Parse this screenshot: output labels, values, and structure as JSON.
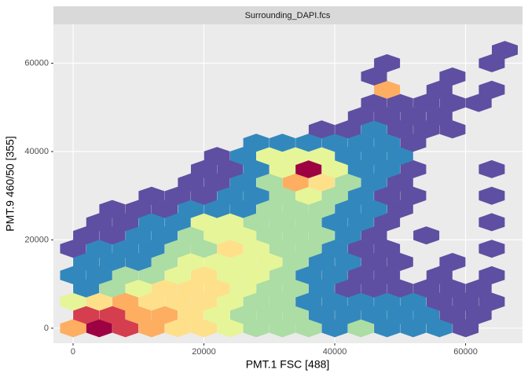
{
  "chart_data": {
    "type": "hexbin",
    "strip_title": "Surrounding_DAPI.fcs",
    "x_label": "PMT.1 FSC [488]",
    "y_label": "PMT.9 460/50 [355]",
    "xlim": [
      -3000,
      68700
    ],
    "ylim": [
      -3400,
      68800
    ],
    "xticks": [
      0,
      20000,
      40000,
      60000
    ],
    "yticks": [
      0,
      20000,
      40000,
      60000
    ],
    "grid": true,
    "colors": [
      "#5e4fa2",
      "#3288bd",
      "#66c2a5",
      "#abdda4",
      "#e6f598",
      "#fee08b",
      "#fdae61",
      "#f46d43",
      "#d53e4f",
      "#9e0142"
    ],
    "rows": [
      {
        "y": 0,
        "x": [
          0,
          4000,
          8000,
          12000,
          16000,
          20000,
          24000,
          28000,
          32000,
          36000,
          40000,
          44000,
          48000,
          52000,
          56000,
          60000
        ],
        "values": [
          6,
          8,
          7,
          6,
          5,
          5,
          4,
          3,
          3,
          3,
          2,
          3,
          2,
          2,
          2,
          1
        ]
      },
      {
        "y": 3000,
        "x": [
          2000,
          6000,
          10000,
          14000,
          18000,
          22000,
          26000,
          30000,
          34000,
          38000,
          42000,
          46000,
          50000,
          54000,
          58000,
          62000
        ],
        "values": [
          7,
          7,
          6,
          6,
          5,
          4,
          3,
          3,
          3,
          2,
          2,
          2,
          2,
          2,
          1,
          1
        ]
      },
      {
        "y": 6000,
        "x": [
          0,
          4000,
          8000,
          12000,
          16000,
          20000,
          24000,
          28000,
          32000,
          36000,
          40000,
          44000,
          48000,
          52000,
          56000,
          60000,
          64000
        ],
        "values": [
          4,
          5,
          6,
          5,
          5,
          5,
          4,
          3,
          3,
          2,
          2,
          2,
          2,
          2,
          1,
          1,
          1
        ]
      },
      {
        "y": 9000,
        "x": [
          2000,
          6000,
          10000,
          14000,
          18000,
          22000,
          26000,
          30000,
          34000,
          38000,
          42000,
          46000,
          50000,
          54000,
          58000,
          62000
        ],
        "values": [
          2,
          3,
          4,
          5,
          5,
          5,
          4,
          3,
          3,
          2,
          1,
          1,
          1,
          1,
          1,
          1
        ]
      },
      {
        "y": 12000,
        "x": [
          0,
          4000,
          8000,
          12000,
          16000,
          20000,
          24000,
          28000,
          32000,
          36000,
          40000,
          44000,
          48000,
          56000,
          64000
        ],
        "values": [
          2,
          2,
          3,
          3,
          4,
          5,
          4,
          4,
          3,
          2,
          2,
          1,
          1,
          1,
          1
        ]
      },
      {
        "y": 15000,
        "x": [
          2000,
          6000,
          10000,
          14000,
          18000,
          22000,
          26000,
          30000,
          34000,
          38000,
          42000,
          46000,
          50000,
          58000
        ],
        "values": [
          2,
          2,
          2,
          3,
          4,
          4,
          4,
          4,
          3,
          2,
          2,
          1,
          1,
          1
        ]
      },
      {
        "y": 18000,
        "x": [
          0,
          4000,
          8000,
          12000,
          16000,
          20000,
          24000,
          28000,
          32000,
          36000,
          40000,
          44000,
          48000,
          64000
        ],
        "values": [
          1,
          2,
          2,
          2,
          3,
          3,
          5,
          4,
          3,
          3,
          2,
          1,
          1,
          1
        ]
      },
      {
        "y": 21000,
        "x": [
          2000,
          6000,
          10000,
          14000,
          18000,
          22000,
          26000,
          30000,
          34000,
          38000,
          42000,
          46000,
          54000
        ],
        "values": [
          1,
          1,
          2,
          2,
          3,
          4,
          4,
          3,
          3,
          3,
          2,
          1,
          1
        ]
      },
      {
        "y": 24000,
        "x": [
          4000,
          8000,
          12000,
          16000,
          20000,
          24000,
          28000,
          32000,
          36000,
          40000,
          44000,
          48000,
          64000
        ],
        "values": [
          1,
          1,
          2,
          2,
          4,
          4,
          3,
          3,
          3,
          2,
          2,
          1,
          1
        ]
      },
      {
        "y": 27000,
        "x": [
          6000,
          10000,
          14000,
          18000,
          22000,
          26000,
          30000,
          34000,
          38000,
          42000,
          46000,
          50000
        ],
        "values": [
          1,
          1,
          1,
          2,
          2,
          2,
          3,
          3,
          3,
          2,
          2,
          1
        ]
      },
      {
        "y": 30000,
        "x": [
          12000,
          16000,
          20000,
          24000,
          28000,
          32000,
          36000,
          40000,
          44000,
          48000,
          52000,
          64000
        ],
        "values": [
          1,
          1,
          1,
          2,
          2,
          3,
          4,
          3,
          2,
          1,
          1,
          1
        ]
      },
      {
        "y": 33000,
        "x": [
          18000,
          22000,
          26000,
          30000,
          34000,
          38000,
          42000,
          46000,
          50000
        ],
        "values": [
          1,
          1,
          2,
          3,
          6,
          5,
          3,
          2,
          1
        ]
      },
      {
        "y": 36000,
        "x": [
          20000,
          24000,
          28000,
          32000,
          36000,
          40000,
          44000,
          48000,
          52000,
          64000
        ],
        "values": [
          1,
          1,
          2,
          4,
          8,
          4,
          2,
          2,
          1,
          1
        ]
      },
      {
        "y": 39000,
        "x": [
          22000,
          26000,
          30000,
          34000,
          38000,
          42000,
          46000,
          50000
        ],
        "values": [
          1,
          2,
          4,
          4,
          4,
          2,
          2,
          2
        ]
      },
      {
        "y": 42000,
        "x": [
          28000,
          32000,
          36000,
          40000,
          44000,
          48000,
          52000
        ],
        "values": [
          2,
          2,
          2,
          2,
          2,
          2,
          1
        ]
      },
      {
        "y": 45000,
        "x": [
          38000,
          42000,
          46000,
          50000,
          54000,
          58000
        ],
        "values": [
          1,
          1,
          2,
          1,
          1,
          1
        ]
      },
      {
        "y": 48000,
        "x": [
          44000,
          48000,
          52000,
          56000
        ],
        "values": [
          1,
          1,
          1,
          1
        ]
      },
      {
        "y": 51000,
        "x": [
          46000,
          50000,
          54000,
          58000,
          62000
        ],
        "values": [
          1,
          1,
          1,
          1,
          1
        ]
      },
      {
        "y": 54000,
        "x": [
          48000,
          56000,
          64000
        ],
        "values": [
          6,
          1,
          1
        ]
      },
      {
        "y": 57000,
        "x": [
          46000,
          58000
        ],
        "values": [
          1,
          1
        ]
      },
      {
        "y": 60000,
        "x": [
          48000,
          64000
        ],
        "values": [
          1,
          1
        ]
      },
      {
        "y": 63000,
        "x": [
          66000
        ],
        "values": [
          1
        ]
      }
    ]
  }
}
